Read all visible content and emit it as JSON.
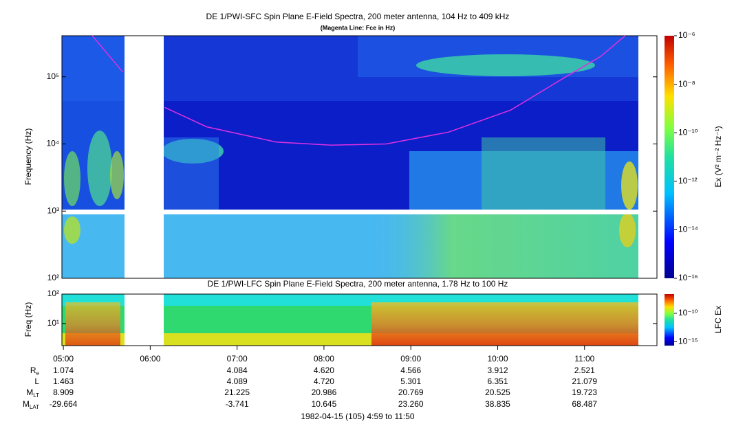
{
  "chart_data": [
    {
      "type": "spectrogram",
      "title": "DE 1/PWI-SFC  Spin Plane E-Field Spectra, 200 meter antenna, 104 Hz to 409 kHz",
      "subtitle": "(Magenta Line: Fce in Hz)",
      "y_label": "Frequency (Hz)",
      "log_y": true,
      "xlim": [
        "04:59",
        "11:50"
      ],
      "ylim": [
        100,
        409000
      ],
      "yticks": [
        {
          "value": 100,
          "label": "10²"
        },
        {
          "value": 1000,
          "label": "10³"
        },
        {
          "value": 10000,
          "label": "10⁴"
        },
        {
          "value": 100000,
          "label": "10⁵"
        }
      ],
      "fce": {
        "color": "#e030e0",
        "x": [
          "05:20",
          "05:41",
          "05:55",
          "06:10",
          "06:39",
          "07:27",
          "08:05",
          "08:43",
          "09:26",
          "10:09",
          "10:47",
          "11:11",
          "11:28"
        ],
        "values": [
          409000,
          118000,
          null,
          35000,
          18000,
          10700,
          9600,
          10000,
          15000,
          32000,
          100000,
          200000,
          409000
        ]
      },
      "colorbar_label": "Ex (V² m⁻² Hz⁻¹)",
      "colorbar_lim": [
        1e-16,
        1e-06
      ],
      "colorbar_ticks": [
        {
          "value": 1e-06,
          "label": "10⁻⁶"
        },
        {
          "value": 1e-08,
          "label": "10⁻⁸"
        },
        {
          "value": 1e-10,
          "label": "10⁻¹⁰"
        },
        {
          "value": 1e-12,
          "label": "10⁻¹²"
        },
        {
          "value": 1e-14,
          "label": "10⁻¹⁴"
        },
        {
          "value": 1e-16,
          "label": "10⁻¹⁶"
        }
      ]
    },
    {
      "type": "spectrogram",
      "title": "DE 1/PWI-LFC  Spin Plane E-Field Spectra, 200 meter antenna, 1.78 Hz to 100 Hz",
      "y_label": "Freq (Hz)",
      "log_y": true,
      "xlim": [
        "04:59",
        "11:50"
      ],
      "xticks": [
        "05:00",
        "06:00",
        "07:00",
        "08:00",
        "09:00",
        "10:00",
        "11:00"
      ],
      "ylim": [
        1.78,
        100
      ],
      "yticks": [
        {
          "value": 10,
          "label": "10¹"
        },
        {
          "value": 100,
          "label": "10²"
        }
      ],
      "colorbar_label": "LFC Ex",
      "colorbar_lim": [
        2e-16,
        2.5e-07
      ],
      "colorbar_ticks": [
        {
          "value": 1e-10,
          "label": "10⁻¹⁰"
        },
        {
          "value": 1e-15,
          "label": "10⁻¹⁵"
        }
      ]
    }
  ],
  "ephemeris": {
    "rows": [
      {
        "label": "R",
        "sub": "e",
        "values": [
          "1.074",
          null,
          "4.084",
          "4.620",
          "4.566",
          "3.912",
          "2.521"
        ]
      },
      {
        "label": "L",
        "sub": null,
        "values": [
          "1.463",
          null,
          "4.089",
          "4.720",
          "5.301",
          "6.351",
          "21.079"
        ]
      },
      {
        "label": "M",
        "sub": "LT",
        "values": [
          "8.909",
          null,
          "21.225",
          "20.986",
          "20.769",
          "20.525",
          "19.723"
        ]
      },
      {
        "label": "M",
        "sub": "LAT",
        "values": [
          "-29.664",
          null,
          "-3.741",
          "10.645",
          "23.260",
          "38.835",
          "68.487"
        ]
      }
    ],
    "footer": "1982-04-15 (105) 4:59 to 11:50"
  }
}
